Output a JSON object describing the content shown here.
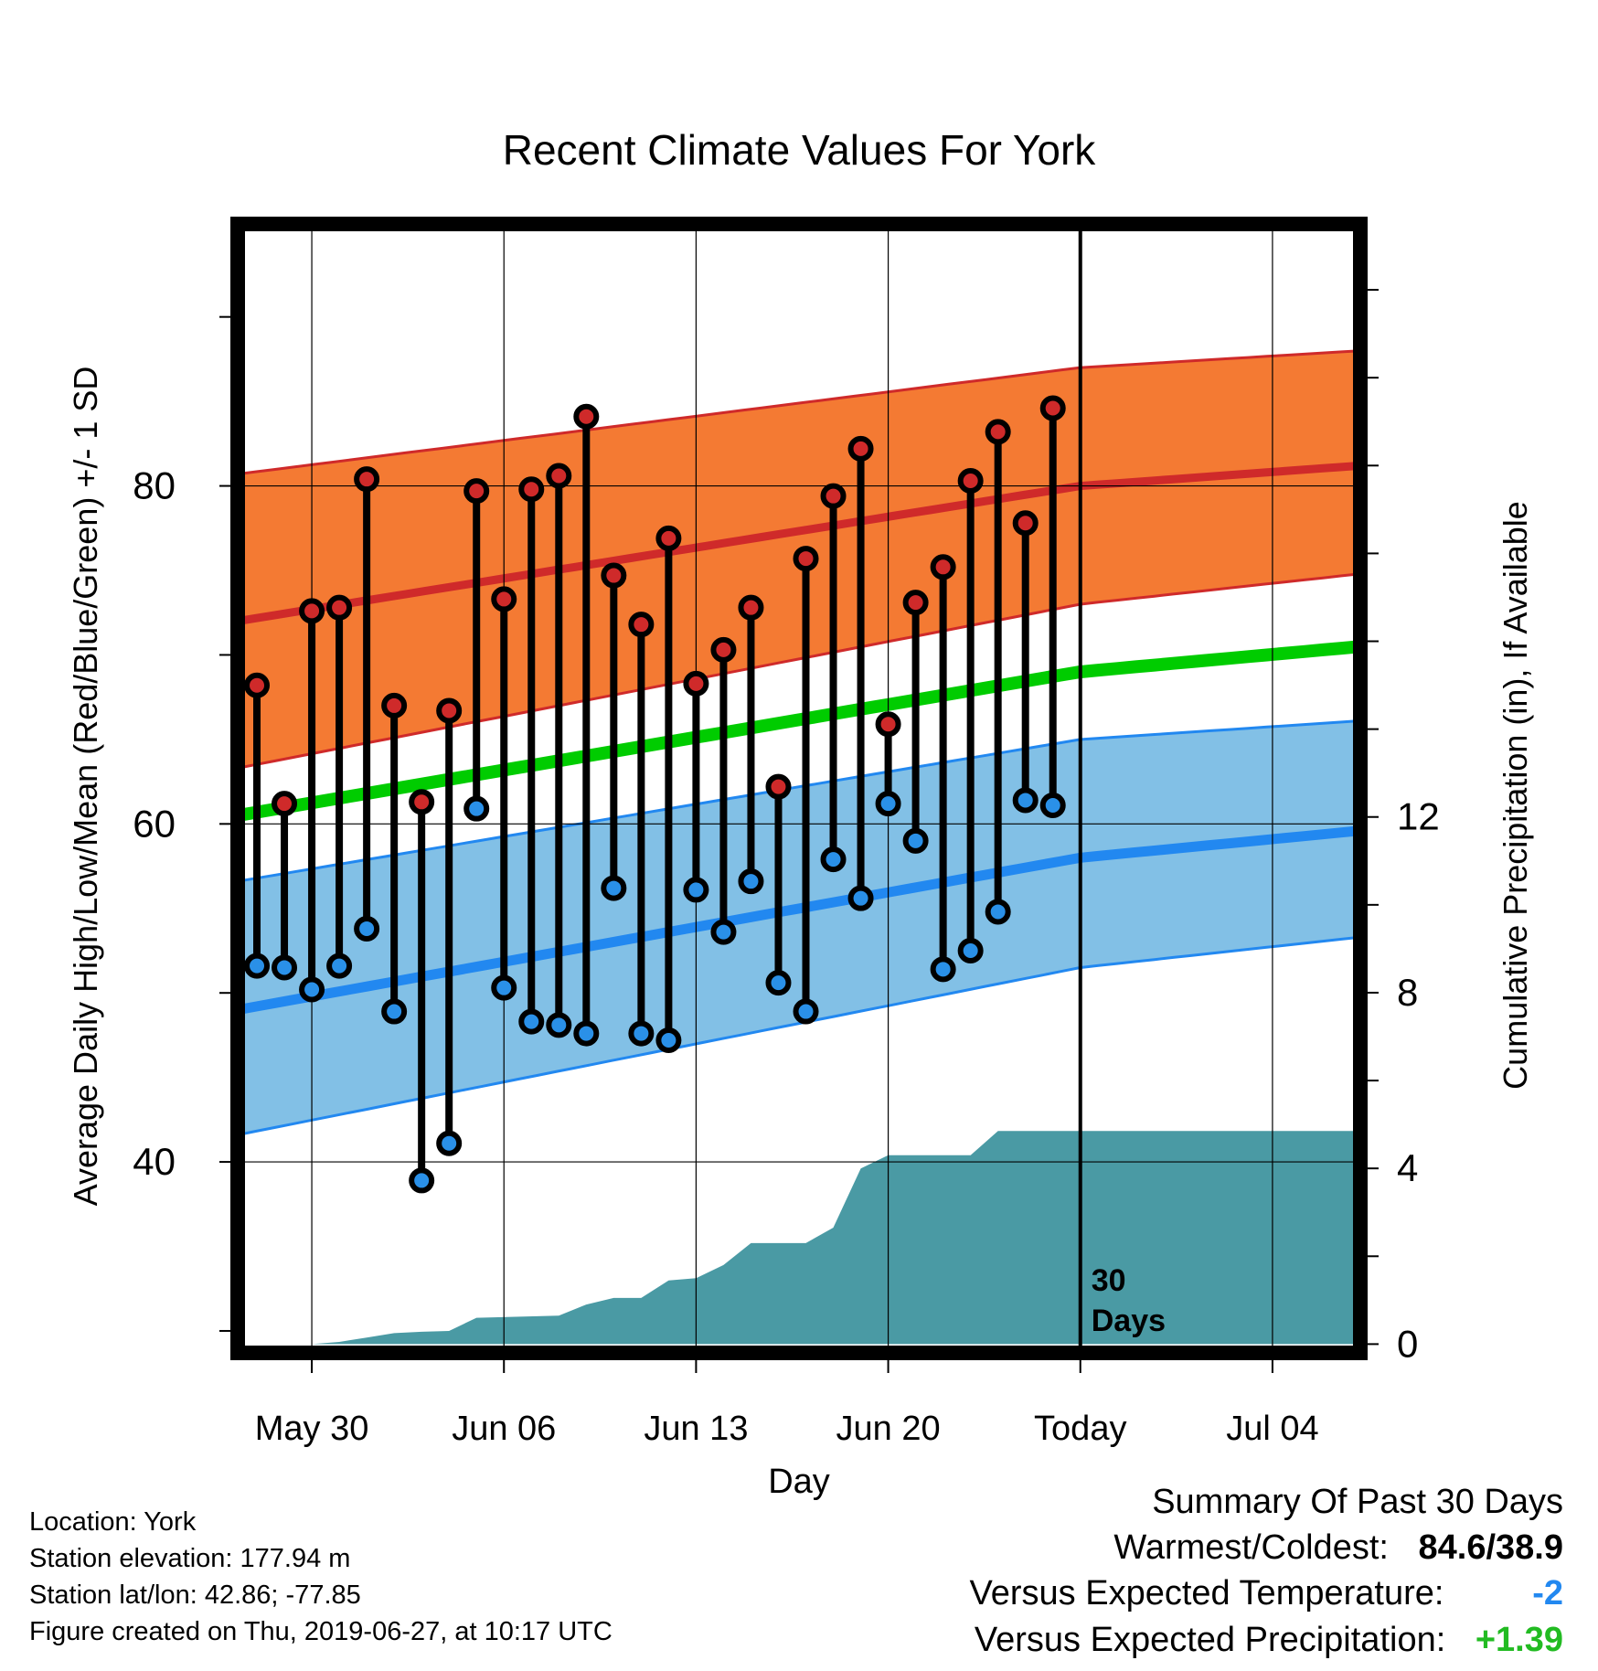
{
  "chart_data": {
    "type": "line",
    "title": "Recent Climate Values For York",
    "xlabel": "Day",
    "ylabel": "Average Daily High/Low/Mean (Red/Blue/Green) +/- 1 SD",
    "y2label": "Cumulative Precipitation (in), If Available",
    "x_tick_labels": [
      "May 30",
      "Jun 06",
      "Jun 13",
      "Jun 20",
      "Today",
      "Jul 04"
    ],
    "x_tick_days": [
      0,
      7,
      14,
      21,
      28,
      35
    ],
    "x_range_days": [
      -2.7,
      38.2
    ],
    "ylim": [
      28.7,
      95.5
    ],
    "y_ticks": [
      40,
      60,
      80
    ],
    "y2lim": [
      -0.2,
      25.5
    ],
    "y2_ticks": [
      0,
      4,
      8,
      12
    ],
    "today_marker_label": [
      "30",
      "Days"
    ],
    "colors": {
      "high_band": "#f47a33",
      "high_line": "#cf2a2a",
      "low_band": "#82c0e6",
      "low_line": "#2288f0",
      "mean_line": "#00cc00",
      "precip": "#4a9aa4",
      "high_marker": "#cf2a2a",
      "low_marker": "#2a90e8"
    },
    "normals": {
      "days": [
        -2.7,
        28,
        38.2
      ],
      "high_mean": [
        72.0,
        80.0,
        81.2
      ],
      "high_upper": [
        80.7,
        87.0,
        88.0
      ],
      "high_lower": [
        63.3,
        73.0,
        74.8
      ],
      "mean": [
        60.5,
        69.0,
        70.5
      ],
      "low_mean": [
        49.0,
        58.0,
        59.6
      ],
      "low_upper": [
        56.6,
        65.0,
        66.1
      ],
      "low_lower": [
        41.6,
        51.5,
        53.3
      ]
    },
    "series": [
      {
        "name": "High",
        "x": [
          -2,
          -1,
          0,
          1,
          2,
          3,
          4,
          5,
          6,
          7,
          8,
          9,
          10,
          11,
          12,
          13,
          14,
          15,
          16,
          17,
          18,
          19,
          20,
          21,
          22,
          23,
          24,
          25,
          26,
          27
        ],
        "values": [
          68.2,
          61.2,
          72.6,
          72.8,
          80.4,
          67.0,
          61.3,
          66.7,
          79.7,
          73.3,
          79.8,
          80.6,
          84.1,
          74.7,
          71.8,
          76.9,
          68.3,
          70.3,
          72.8,
          62.2,
          75.7,
          79.4,
          82.2,
          65.9,
          73.1,
          75.2,
          80.3,
          83.2,
          77.8,
          84.6
        ]
      },
      {
        "name": "Low",
        "x": [
          -2,
          -1,
          0,
          1,
          2,
          3,
          4,
          5,
          6,
          7,
          8,
          9,
          10,
          11,
          12,
          13,
          14,
          15,
          16,
          17,
          18,
          19,
          20,
          21,
          22,
          23,
          24,
          25,
          26,
          27
        ],
        "values": [
          51.6,
          51.5,
          50.2,
          51.6,
          53.8,
          48.9,
          38.9,
          41.1,
          60.9,
          50.3,
          48.3,
          48.1,
          47.6,
          56.2,
          47.6,
          47.2,
          56.1,
          53.6,
          56.6,
          50.6,
          48.9,
          57.9,
          55.6,
          61.2,
          59.0,
          51.4,
          52.5,
          54.8,
          61.4,
          61.1
        ]
      },
      {
        "name": "Cumulative Precipitation",
        "x": [
          -2.7,
          0,
          1,
          2,
          3,
          4,
          5,
          6,
          9,
          10,
          11,
          12,
          13,
          14,
          15,
          16,
          17,
          18,
          19,
          20,
          21,
          22,
          23,
          24,
          25,
          26,
          27,
          28,
          38.2
        ],
        "values": [
          0,
          0,
          0.05,
          0.15,
          0.25,
          0.28,
          0.3,
          0.6,
          0.65,
          0.9,
          1.05,
          1.05,
          1.45,
          1.5,
          1.8,
          2.3,
          2.3,
          2.3,
          2.65,
          4.0,
          4.3,
          4.3,
          4.3,
          4.3,
          4.85,
          4.85,
          4.85,
          4.85,
          4.85
        ]
      }
    ]
  },
  "station_info": [
    "Location: York",
    "Station elevation: 177.94 m",
    "Station lat/lon: 42.86; -77.85",
    "Figure created on Thu, 2019-06-27, at 10:17 UTC"
  ],
  "summary": {
    "heading": "Summary Of Past 30 Days",
    "warm_cold_label": "Warmest/Coldest:",
    "warm_cold_value": "84.6/38.9",
    "temp_label": "Versus Expected Temperature:",
    "temp_value": "-2",
    "temp_color": "#2288f0",
    "precip_label": "Versus Expected Precipitation:",
    "precip_value": "+1.39",
    "precip_color": "#22bb22"
  }
}
